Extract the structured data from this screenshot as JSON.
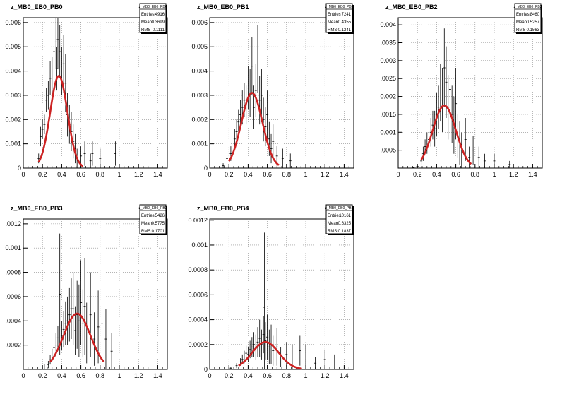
{
  "chart_data": [
    {
      "type": "scatter",
      "title": "z_MB0_EB0_PB0",
      "stats": {
        "name": "z_MB0_EB0_PB0",
        "entries_label": "Entries",
        "entries": "4916",
        "mean_label": "Mean",
        "mean": "0.3699",
        "rms_label": "RMS",
        "rms": "0.1111"
      },
      "xlim": [
        0,
        1.5
      ],
      "ylim": [
        0,
        0.0062
      ],
      "xticks": [
        0,
        0.2,
        0.4,
        0.6,
        0.8,
        1.0,
        1.2,
        1.4
      ],
      "xtick_labels": [
        "0",
        "0.2",
        "0.4",
        "0.6",
        "0.8",
        "1",
        "1.2",
        "1.4"
      ],
      "yticks": [
        0,
        0.001,
        0.002,
        0.003,
        0.004,
        0.005,
        0.006
      ],
      "ytick_labels": [
        "0",
        "0.001",
        "0.002",
        "0.003",
        "0.004",
        "0.005",
        "0.006"
      ],
      "grid": true,
      "fit": {
        "type": "gaussian",
        "color": "#cc2222",
        "amplitude": 0.0038,
        "mean": 0.37,
        "sigma": 0.09,
        "range": [
          0.16,
          0.62
        ]
      },
      "points": [
        [
          0.16,
          0.0004,
          0.0002
        ],
        [
          0.18,
          0.0013,
          0.0004
        ],
        [
          0.2,
          0.0016,
          0.0004
        ],
        [
          0.22,
          0.0018,
          0.0004
        ],
        [
          0.24,
          0.0028,
          0.0005
        ],
        [
          0.26,
          0.003,
          0.0006
        ],
        [
          0.28,
          0.0037,
          0.0007
        ],
        [
          0.3,
          0.0038,
          0.0008
        ],
        [
          0.32,
          0.0048,
          0.001
        ],
        [
          0.34,
          0.0052,
          0.0011
        ],
        [
          0.35,
          0.0041,
          0.0009
        ],
        [
          0.36,
          0.0053,
          0.0012
        ],
        [
          0.38,
          0.0048,
          0.0011
        ],
        [
          0.4,
          0.004,
          0.001
        ],
        [
          0.42,
          0.0043,
          0.0012
        ],
        [
          0.44,
          0.0035,
          0.0012
        ],
        [
          0.46,
          0.0022,
          0.0009
        ],
        [
          0.48,
          0.0018,
          0.0008
        ],
        [
          0.5,
          0.0015,
          0.0008
        ],
        [
          0.52,
          0.0011,
          0.0007
        ],
        [
          0.54,
          0.0008,
          0.0006
        ],
        [
          0.56,
          0.0004,
          0.0004
        ],
        [
          0.6,
          0.0005,
          0.0004
        ],
        [
          0.64,
          0.0006,
          0.0005
        ],
        [
          0.7,
          0.0003,
          0.0003
        ],
        [
          0.72,
          0.0006,
          0.0005
        ],
        [
          0.8,
          0.0004,
          0.0004
        ],
        [
          0.96,
          0.0006,
          0.0005
        ]
      ]
    },
    {
      "type": "scatter",
      "title": "z_MB0_EB0_PB1",
      "stats": {
        "name": "z_MB0_EB0_PB1",
        "entries_label": "Entries",
        "entries": "7241",
        "mean_label": "Mean",
        "mean": "0.4355",
        "rms_label": "RMS",
        "rms": "0.1241"
      },
      "xlim": [
        0,
        1.5
      ],
      "ylim": [
        0,
        0.0062
      ],
      "xticks": [
        0,
        0.2,
        0.4,
        0.6,
        0.8,
        1.0,
        1.2,
        1.4
      ],
      "xtick_labels": [
        "0",
        "0.2",
        "0.4",
        "0.6",
        "0.8",
        "1",
        "1.2",
        "1.4"
      ],
      "yticks": [
        0,
        0.001,
        0.002,
        0.003,
        0.004,
        0.005,
        0.006
      ],
      "ytick_labels": [
        "0",
        "0.001",
        "0.002",
        "0.003",
        "0.004",
        "0.005",
        "0.006"
      ],
      "grid": true,
      "fit": {
        "type": "gaussian",
        "color": "#cc2222",
        "amplitude": 0.0031,
        "mean": 0.44,
        "sigma": 0.11,
        "range": [
          0.2,
          0.72
        ]
      },
      "points": [
        [
          0.14,
          0.0001,
          0.0001
        ],
        [
          0.18,
          0.0004,
          0.0002
        ],
        [
          0.22,
          0.0006,
          0.0003
        ],
        [
          0.26,
          0.0012,
          0.0004
        ],
        [
          0.28,
          0.0015,
          0.0005
        ],
        [
          0.3,
          0.0019,
          0.0005
        ],
        [
          0.32,
          0.0022,
          0.0006
        ],
        [
          0.34,
          0.0025,
          0.0007
        ],
        [
          0.36,
          0.0028,
          0.0007
        ],
        [
          0.38,
          0.0026,
          0.0008
        ],
        [
          0.4,
          0.0033,
          0.0009
        ],
        [
          0.42,
          0.0031,
          0.001
        ],
        [
          0.44,
          0.0042,
          0.0012
        ],
        [
          0.46,
          0.0025,
          0.0009
        ],
        [
          0.48,
          0.0032,
          0.0011
        ],
        [
          0.5,
          0.0045,
          0.0014
        ],
        [
          0.52,
          0.0028,
          0.001
        ],
        [
          0.54,
          0.003,
          0.0011
        ],
        [
          0.56,
          0.002,
          0.0009
        ],
        [
          0.58,
          0.0017,
          0.0008
        ],
        [
          0.6,
          0.0022,
          0.001
        ],
        [
          0.62,
          0.0012,
          0.0007
        ],
        [
          0.64,
          0.0008,
          0.0006
        ],
        [
          0.66,
          0.0011,
          0.0007
        ],
        [
          0.7,
          0.0005,
          0.0004
        ],
        [
          0.76,
          0.0004,
          0.0004
        ],
        [
          0.84,
          0.0003,
          0.0003
        ]
      ]
    },
    {
      "type": "scatter",
      "title": "z_MB0_EB0_PB2",
      "stats": {
        "name": "z_MB0_EB0_PB2",
        "entries_label": "Entries",
        "entries": "8460",
        "mean_label": "Mean",
        "mean": "0.5257",
        "rms_label": "RMS",
        "rms": "0.1563"
      },
      "xlim": [
        0,
        1.5
      ],
      "ylim": [
        0,
        0.0042
      ],
      "xticks": [
        0,
        0.2,
        0.4,
        0.6,
        0.8,
        1.0,
        1.2,
        1.4
      ],
      "xtick_labels": [
        "0",
        "0.2",
        "0.4",
        "0.6",
        "0.8",
        "1",
        "1.2",
        "1.4"
      ],
      "yticks": [
        0.0005,
        0.001,
        0.0015,
        0.002,
        0.0025,
        0.003,
        0.0035,
        0.004
      ],
      "ytick_labels": [
        ".0005",
        "0.001",
        ".0015",
        "0.002",
        ".0025",
        "0.003",
        ".0035",
        "0.004"
      ],
      "grid": true,
      "fit": {
        "type": "gaussian",
        "color": "#cc2222",
        "amplitude": 0.00175,
        "mean": 0.48,
        "sigma": 0.12,
        "range": [
          0.24,
          0.76
        ]
      },
      "points": [
        [
          0.16,
          2e-05,
          2e-05
        ],
        [
          0.2,
          5e-05,
          4e-05
        ],
        [
          0.24,
          0.0002,
          0.0001
        ],
        [
          0.26,
          0.0004,
          0.0002
        ],
        [
          0.28,
          0.0006,
          0.0002
        ],
        [
          0.3,
          0.0007,
          0.0003
        ],
        [
          0.32,
          0.0008,
          0.0003
        ],
        [
          0.34,
          0.001,
          0.0004
        ],
        [
          0.36,
          0.0012,
          0.0004
        ],
        [
          0.38,
          0.0011,
          0.0005
        ],
        [
          0.4,
          0.0015,
          0.0006
        ],
        [
          0.42,
          0.0017,
          0.0006
        ],
        [
          0.44,
          0.0021,
          0.0008
        ],
        [
          0.46,
          0.0019,
          0.0009
        ],
        [
          0.48,
          0.0028,
          0.0011
        ],
        [
          0.5,
          0.0024,
          0.001
        ],
        [
          0.52,
          0.0017,
          0.0009
        ],
        [
          0.54,
          0.0022,
          0.0011
        ],
        [
          0.56,
          0.0015,
          0.0008
        ],
        [
          0.58,
          0.0012,
          0.0008
        ],
        [
          0.6,
          0.0018,
          0.001
        ],
        [
          0.62,
          0.0009,
          0.0006
        ],
        [
          0.64,
          0.0007,
          0.0006
        ],
        [
          0.66,
          0.0005,
          0.0005
        ],
        [
          0.7,
          0.0008,
          0.0006
        ],
        [
          0.74,
          0.0003,
          0.0003
        ],
        [
          0.78,
          0.0005,
          0.0004
        ],
        [
          0.84,
          0.0003,
          0.0003
        ],
        [
          0.9,
          0.0002,
          0.0002
        ],
        [
          1.0,
          0.0002,
          0.0002
        ],
        [
          1.16,
          0.0001,
          0.0001
        ]
      ]
    },
    {
      "type": "scatter",
      "title": "z_MB0_EB0_PB3",
      "stats": {
        "name": "z_MB0_EB0_PB3",
        "entries_label": "Entries",
        "entries": "5426",
        "mean_label": "Mean",
        "mean": "0.5775",
        "rms_label": "RMS",
        "rms": "0.1701"
      },
      "xlim": [
        0,
        1.5
      ],
      "ylim": [
        0,
        0.00124
      ],
      "xticks": [
        0,
        0.2,
        0.4,
        0.6,
        0.8,
        1.0,
        1.2,
        1.4
      ],
      "xtick_labels": [
        "0",
        "0.2",
        "0.4",
        "0.6",
        "0.8",
        "1",
        "1.2",
        "1.4"
      ],
      "yticks": [
        0.0002,
        0.0004,
        0.0006,
        0.0008,
        0.001,
        0.0012
      ],
      "ytick_labels": [
        ".0002",
        ".0004",
        ".0006",
        ".0008",
        "0.001",
        ".0012"
      ],
      "grid": true,
      "fit": {
        "type": "gaussian",
        "color": "#cc2222",
        "amplitude": 0.00046,
        "mean": 0.56,
        "sigma": 0.14,
        "range": [
          0.28,
          0.84
        ]
      },
      "points": [
        [
          0.22,
          2e-05,
          2e-05
        ],
        [
          0.26,
          4e-05,
          3e-05
        ],
        [
          0.28,
          8e-05,
          4e-05
        ],
        [
          0.3,
          0.00012,
          5e-05
        ],
        [
          0.32,
          0.00018,
          7e-05
        ],
        [
          0.34,
          0.0002,
          0.0001
        ],
        [
          0.36,
          0.00026,
          0.0001
        ],
        [
          0.38,
          0.00062,
          0.0005
        ],
        [
          0.4,
          0.00028,
          0.00012
        ],
        [
          0.42,
          0.00033,
          0.00015
        ],
        [
          0.44,
          0.00038,
          0.00018
        ],
        [
          0.46,
          0.0004,
          0.0002
        ],
        [
          0.48,
          0.00045,
          0.00022
        ],
        [
          0.5,
          0.0005,
          0.00025
        ],
        [
          0.52,
          0.0005,
          0.0003
        ],
        [
          0.54,
          0.00032,
          0.0002
        ],
        [
          0.56,
          0.00045,
          0.00028
        ],
        [
          0.58,
          0.0004,
          0.0003
        ],
        [
          0.6,
          0.00055,
          0.00035
        ],
        [
          0.62,
          0.00038,
          0.00028
        ],
        [
          0.64,
          0.00052,
          0.0004
        ],
        [
          0.66,
          0.0003,
          0.00025
        ],
        [
          0.7,
          0.00045,
          0.00035
        ],
        [
          0.74,
          0.00025,
          0.00022
        ],
        [
          0.78,
          0.00035,
          0.0003
        ],
        [
          0.82,
          0.00038,
          0.00035
        ],
        [
          0.86,
          0.00025,
          0.00025
        ],
        [
          0.92,
          0.00015,
          0.00015
        ]
      ]
    },
    {
      "type": "scatter",
      "title": "z_MB0_EB0_PB4",
      "stats": {
        "name": "z_MB0_EB0_PB4",
        "entries_label": "Entries",
        "entries": "10161",
        "mean_label": "Mean",
        "mean": "0.6325",
        "rms_label": "RMS",
        "rms": "0.1837"
      },
      "xlim": [
        0,
        1.5
      ],
      "ylim": [
        0,
        0.00121
      ],
      "xticks": [
        0,
        0.2,
        0.4,
        0.6,
        0.8,
        1.0,
        1.2,
        1.4
      ],
      "xtick_labels": [
        "0",
        "0.2",
        "0.4",
        "0.6",
        "0.8",
        "1",
        "1.2",
        "1.4"
      ],
      "yticks": [
        0,
        0.0002,
        0.0004,
        0.0006,
        0.0008,
        0.001,
        0.0012
      ],
      "ytick_labels": [
        "0",
        "0.0002",
        "0.0004",
        "0.0006",
        "0.0008",
        "0.001",
        "0.0012"
      ],
      "grid": true,
      "fit": {
        "type": "gaussian",
        "color": "#cc2222",
        "amplitude": 0.00022,
        "mean": 0.58,
        "sigma": 0.14,
        "range": [
          0.3,
          0.96
        ]
      },
      "points": [
        [
          0.22,
          1e-05,
          1e-05
        ],
        [
          0.28,
          3e-05,
          2e-05
        ],
        [
          0.32,
          6e-05,
          3e-05
        ],
        [
          0.34,
          8e-05,
          4e-05
        ],
        [
          0.36,
          0.0001,
          5e-05
        ],
        [
          0.38,
          0.00013,
          6e-05
        ],
        [
          0.4,
          0.00012,
          6e-05
        ],
        [
          0.42,
          0.00016,
          7e-05
        ],
        [
          0.44,
          0.00018,
          8e-05
        ],
        [
          0.46,
          0.0002,
          0.0001
        ],
        [
          0.48,
          0.00018,
          0.0001
        ],
        [
          0.5,
          0.00022,
          0.00012
        ],
        [
          0.52,
          0.00025,
          0.00015
        ],
        [
          0.54,
          0.0002,
          0.00012
        ],
        [
          0.56,
          0.00028,
          0.00015
        ],
        [
          0.57,
          0.0005,
          0.0006
        ],
        [
          0.58,
          0.00023,
          0.00015
        ],
        [
          0.6,
          0.00026,
          0.00018
        ],
        [
          0.62,
          0.00018,
          0.00014
        ],
        [
          0.64,
          0.0002,
          0.00016
        ],
        [
          0.66,
          0.00015,
          0.00012
        ],
        [
          0.7,
          0.00018,
          0.00015
        ],
        [
          0.74,
          0.0001,
          8e-05
        ],
        [
          0.8,
          0.00012,
          0.0001
        ],
        [
          0.86,
          0.0001,
          0.0001
        ],
        [
          0.94,
          0.00015,
          0.00012
        ],
        [
          1.0,
          0.0001,
          0.0001
        ],
        [
          1.1,
          5e-05,
          5e-05
        ],
        [
          1.2,
          8e-05,
          8e-05
        ],
        [
          1.3,
          6e-05,
          6e-05
        ]
      ]
    }
  ]
}
